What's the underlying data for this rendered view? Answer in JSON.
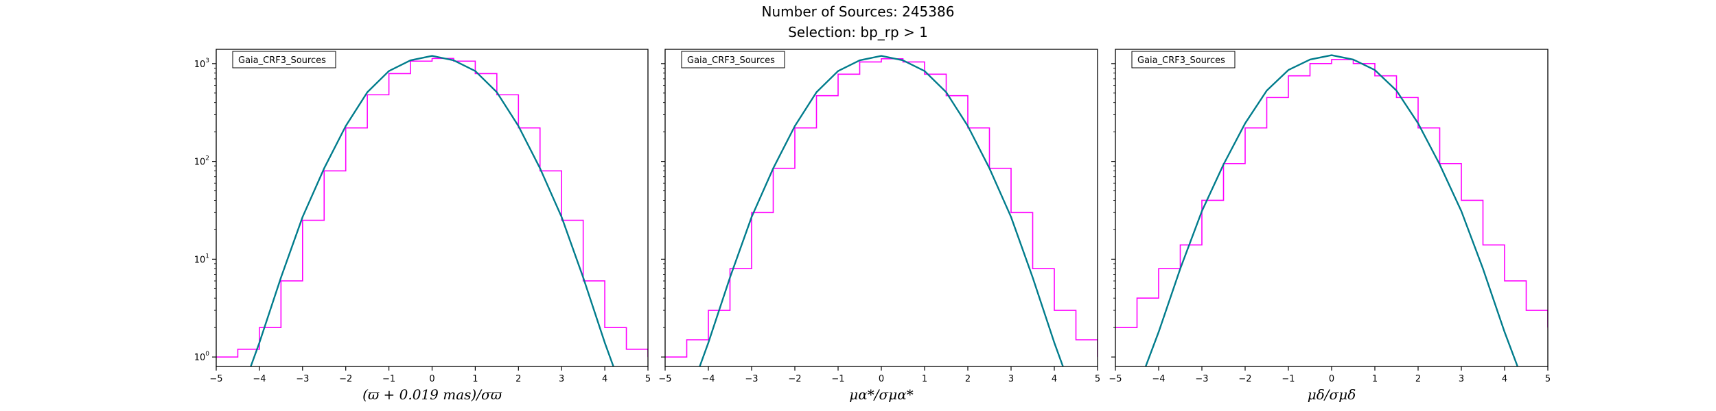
{
  "figure": {
    "title_line1": "Number of Sources: 245386",
    "title_line2": "Selection: bp_rp > 1"
  },
  "colors": {
    "histogram": "#ff00ff",
    "gaussian": "#007c8c",
    "axes": "#000000"
  },
  "chart_data": [
    {
      "type": "line",
      "legend": "Gaia_CRF3_Sources",
      "legend_placement": "upper-left",
      "xlabel": "(ϖ + 0.019 mas)/σϖ",
      "xlim": [
        -5,
        5
      ],
      "ylim": [
        0.8,
        1400
      ],
      "yscale": "log",
      "grid": false,
      "x_ticks": [
        -5,
        -4,
        -3,
        -2,
        -1,
        0,
        1,
        2,
        3,
        4,
        5
      ],
      "y_ticks": [
        {
          "base": "10",
          "exp": "0",
          "value": 1
        },
        {
          "base": "10",
          "exp": "1",
          "value": 10
        },
        {
          "base": "10",
          "exp": "2",
          "value": 100
        },
        {
          "base": "10",
          "exp": "3",
          "value": 1000
        }
      ],
      "series": [
        {
          "kind": "step",
          "x": [
            -5,
            -4.5,
            -4,
            -3.5,
            -3,
            -2.5,
            -2,
            -1.5,
            -1,
            -0.5,
            0,
            0.5,
            1,
            1.5,
            2,
            2.5,
            3,
            3.5,
            4,
            4.5,
            5
          ],
          "values": [
            1,
            1.2,
            2,
            6,
            25,
            80,
            220,
            480,
            790,
            1060,
            1130,
            1060,
            790,
            480,
            220,
            80,
            25,
            6,
            2,
            1.2,
            1
          ]
        },
        {
          "kind": "curve",
          "x": [
            -4.2,
            -4,
            -3.5,
            -3,
            -2.5,
            -2,
            -1.5,
            -1,
            -0.5,
            0,
            0.5,
            1,
            1.5,
            2,
            2.5,
            3,
            3.5,
            4,
            4.2
          ],
          "values": [
            0.8,
            1.4,
            6.5,
            27,
            85,
            230,
            510,
            840,
            1080,
            1200,
            1080,
            840,
            510,
            230,
            85,
            27,
            6.5,
            1.4,
            0.8
          ]
        }
      ]
    },
    {
      "type": "line",
      "legend": "Gaia_CRF3_Sources",
      "legend_placement": "upper-left",
      "xlabel": "μα*/σμα*",
      "xlim": [
        -5,
        5
      ],
      "ylim": [
        0.8,
        1400
      ],
      "yscale": "log",
      "grid": false,
      "x_ticks": [
        -5,
        -4,
        -3,
        -2,
        -1,
        0,
        1,
        2,
        3,
        4,
        5
      ],
      "y_ticks": [
        {
          "base": "10",
          "exp": "0",
          "value": 1
        },
        {
          "base": "10",
          "exp": "1",
          "value": 10
        },
        {
          "base": "10",
          "exp": "2",
          "value": 100
        },
        {
          "base": "10",
          "exp": "3",
          "value": 1000
        }
      ],
      "series": [
        {
          "kind": "step",
          "x": [
            -5,
            -4.5,
            -4,
            -3.5,
            -3,
            -2.5,
            -2,
            -1.5,
            -1,
            -0.5,
            0,
            0.5,
            1,
            1.5,
            2,
            2.5,
            3,
            3.5,
            4,
            4.5,
            5
          ],
          "values": [
            1,
            1.5,
            3,
            8,
            30,
            85,
            220,
            470,
            780,
            1040,
            1120,
            1040,
            780,
            470,
            220,
            85,
            30,
            8,
            3,
            1.5,
            1
          ]
        },
        {
          "kind": "curve",
          "x": [
            -4.2,
            -4,
            -3.5,
            -3,
            -2.5,
            -2,
            -1.5,
            -1,
            -0.5,
            0,
            0.5,
            1,
            1.5,
            2,
            2.5,
            3,
            3.5,
            4,
            4.2
          ],
          "values": [
            0.8,
            1.4,
            6.5,
            27,
            85,
            230,
            510,
            840,
            1080,
            1200,
            1080,
            840,
            510,
            230,
            85,
            27,
            6.5,
            1.4,
            0.8
          ]
        }
      ]
    },
    {
      "type": "line",
      "legend": "Gaia_CRF3_Sources",
      "legend_placement": "upper-left",
      "xlabel": "μδ/σμδ",
      "xlim": [
        -5,
        5
      ],
      "ylim": [
        0.8,
        1400
      ],
      "yscale": "log",
      "grid": false,
      "x_ticks": [
        -5,
        -4,
        -3,
        -2,
        -1,
        0,
        1,
        2,
        3,
        4,
        5
      ],
      "y_ticks": [
        {
          "base": "10",
          "exp": "0",
          "value": 1
        },
        {
          "base": "10",
          "exp": "1",
          "value": 10
        },
        {
          "base": "10",
          "exp": "2",
          "value": 100
        },
        {
          "base": "10",
          "exp": "3",
          "value": 1000
        }
      ],
      "series": [
        {
          "kind": "step",
          "x": [
            -5,
            -4.5,
            -4,
            -3.5,
            -3,
            -2.5,
            -2,
            -1.5,
            -1,
            -0.5,
            0,
            0.5,
            1,
            1.5,
            2,
            2.5,
            3,
            3.5,
            4,
            4.5,
            5
          ],
          "values": [
            2,
            4,
            8,
            14,
            40,
            95,
            220,
            450,
            750,
            1000,
            1100,
            1000,
            750,
            450,
            220,
            95,
            40,
            14,
            6,
            3,
            2
          ]
        },
        {
          "kind": "curve",
          "x": [
            -4.3,
            -4,
            -3.5,
            -3,
            -2.5,
            -2,
            -1.5,
            -1,
            -0.5,
            0,
            0.5,
            1,
            1.5,
            2,
            2.5,
            3,
            3.5,
            4,
            4.3
          ],
          "values": [
            0.8,
            1.8,
            8,
            31,
            93,
            245,
            530,
            860,
            1100,
            1220,
            1100,
            860,
            530,
            245,
            93,
            31,
            8,
            1.8,
            0.8
          ]
        }
      ]
    }
  ]
}
